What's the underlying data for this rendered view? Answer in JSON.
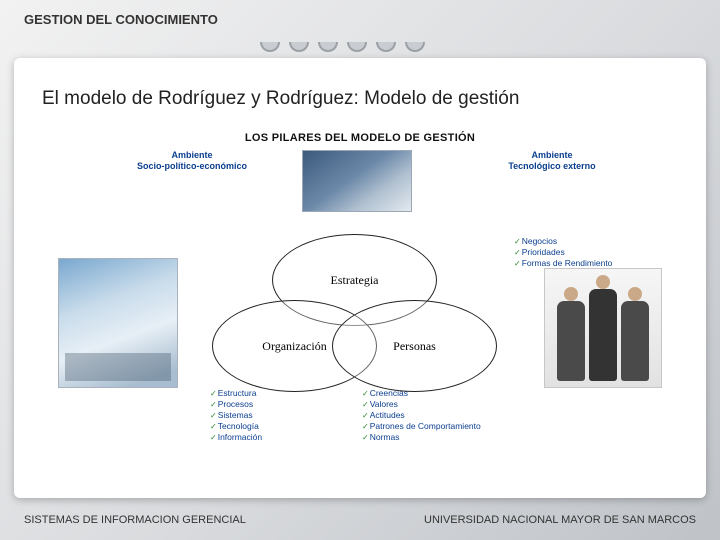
{
  "header": "GESTION DEL CONOCIMIENTO",
  "title": "El modelo de Rodríguez y Rodríguez: Modelo de gestión",
  "subtitle": "LOS PILARES DEL MODELO DE GESTIÓN",
  "env_left": {
    "line1": "Ambiente",
    "line2": "Socio-político-económico"
  },
  "env_right": {
    "line1": "Ambiente",
    "line2": "Tecnológico externo"
  },
  "venn": {
    "top": "Estrategia",
    "left": "Organización",
    "right": "Personas"
  },
  "lists": {
    "estrategia": [
      "Negocios",
      "Prioridades",
      "Formas de Rendimiento"
    ],
    "organizacion": [
      "Estructura",
      "Procesos",
      "Sistemas",
      "Tecnología",
      "Información"
    ],
    "personas": [
      "Creencias",
      "Valores",
      "Actitudes",
      "Patrones de Comportamiento",
      "Normas"
    ]
  },
  "footer": {
    "left": "SISTEMAS DE INFORMACION GERENCIAL",
    "right": "UNIVERSIDAD NACIONAL MAYOR DE SAN MARCOS"
  },
  "colors": {
    "brand_text": "#0b3f8f",
    "check": "#2b8a2b",
    "page_bg": "#ffffff"
  },
  "binder_rings": 6
}
